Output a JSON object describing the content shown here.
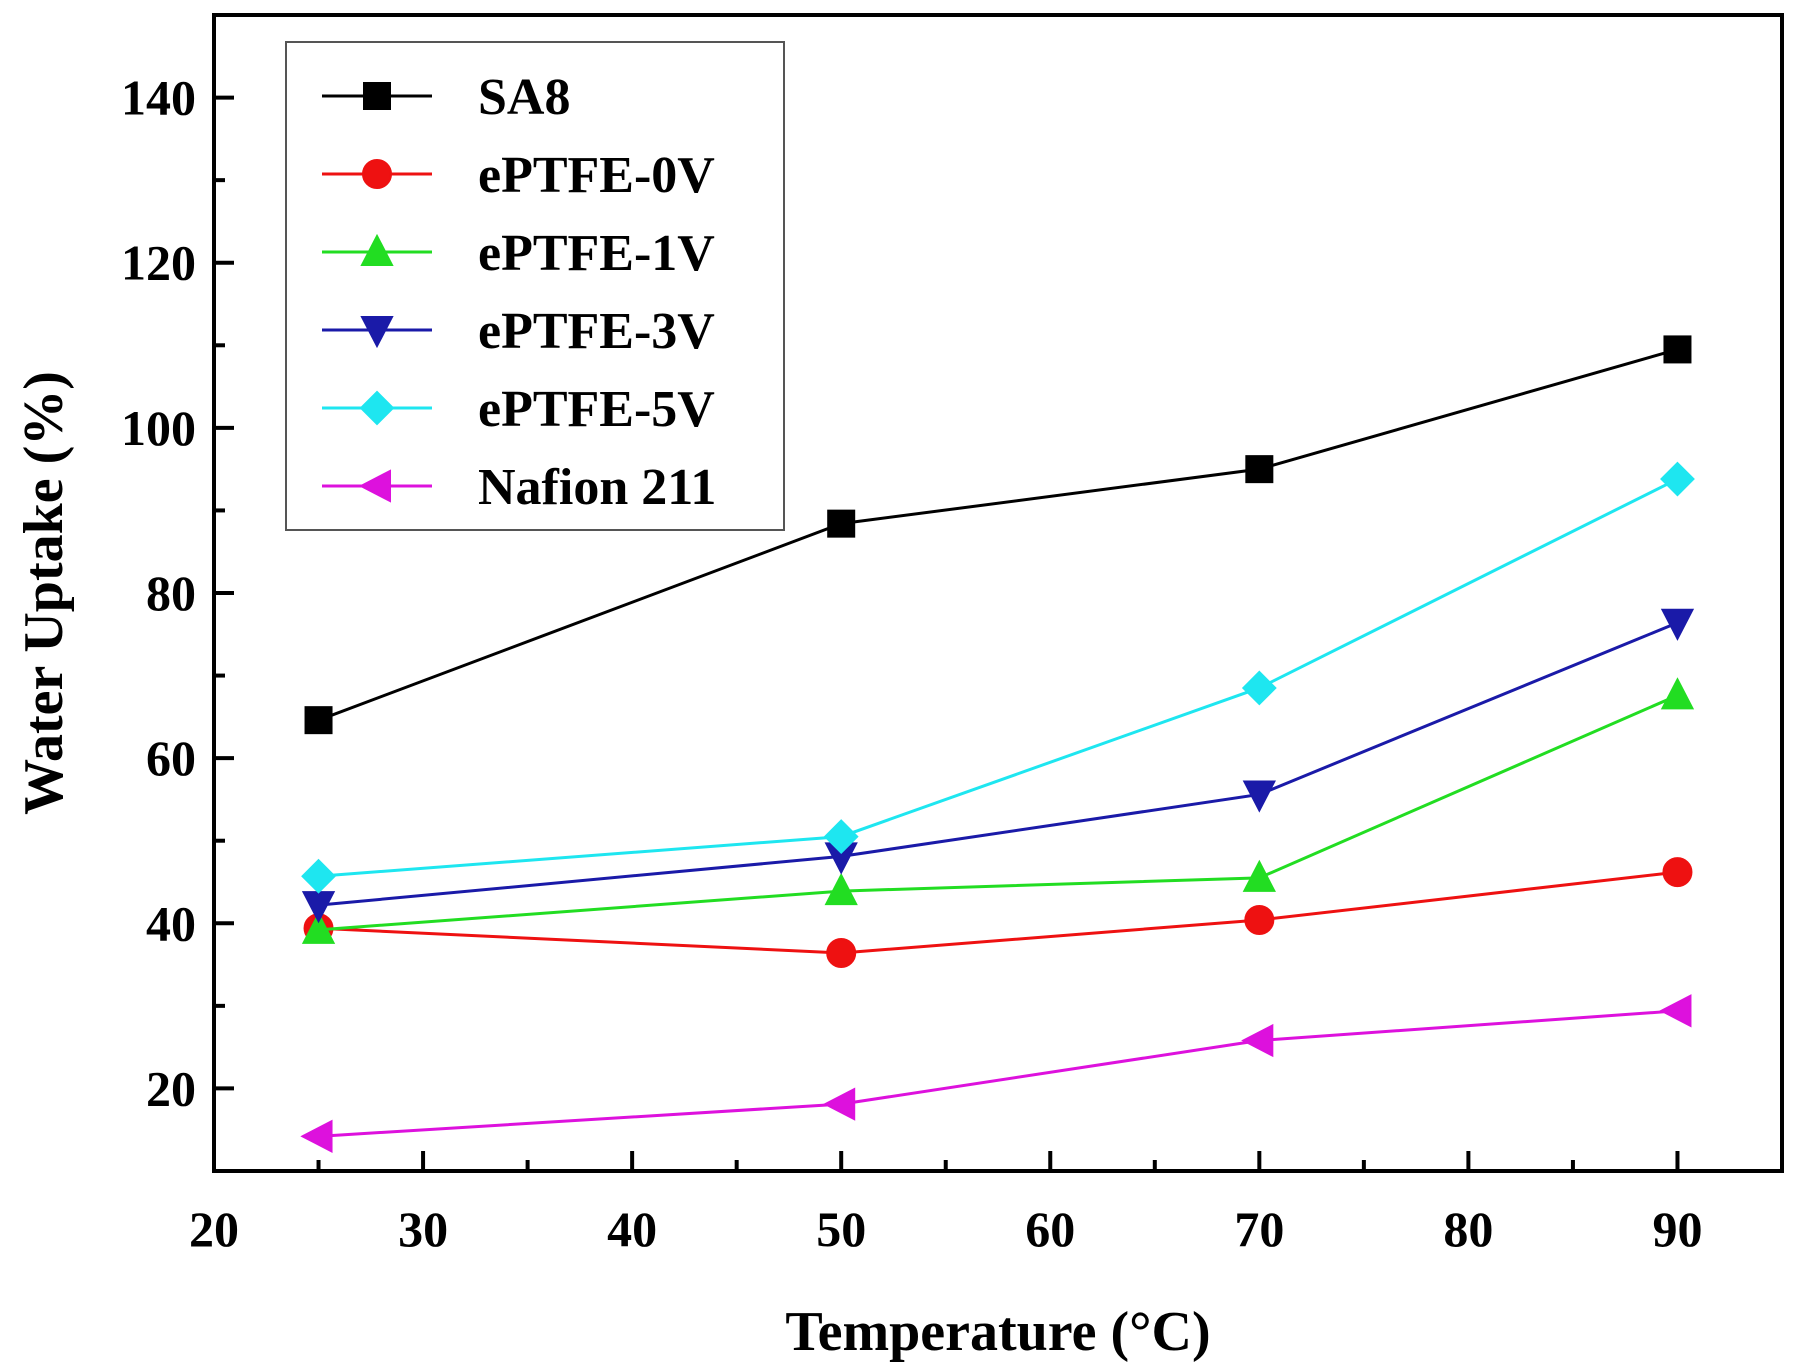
{
  "chart_data": {
    "type": "line",
    "title": "",
    "xlabel": "Temperature (°C)",
    "ylabel": "Water Uptake (%)",
    "xlim": [
      20,
      95
    ],
    "ylim": [
      10,
      150
    ],
    "x_ticks": [
      20,
      30,
      40,
      50,
      60,
      70,
      80,
      90
    ],
    "x_tick_labels": [
      "20",
      "30",
      "40",
      "50",
      "60",
      "70",
      "80",
      "90"
    ],
    "y_ticks": [
      20,
      40,
      60,
      80,
      100,
      120,
      140
    ],
    "y_tick_labels": [
      "20",
      "40",
      "60",
      "80",
      "100",
      "120",
      "140"
    ],
    "x_minor_step": 5,
    "y_minor_step": 10,
    "grid": false,
    "legend_position": "top-left",
    "x": [
      25,
      50,
      70,
      90
    ],
    "series": [
      {
        "name": "SA8",
        "color": "#000000",
        "marker": "square",
        "values": [
          64.6,
          88.4,
          95.0,
          109.5
        ]
      },
      {
        "name": "ePTFE-0V",
        "color": "#ee1111",
        "marker": "circle",
        "values": [
          39.4,
          36.4,
          40.4,
          46.2
        ]
      },
      {
        "name": "ePTFE-1V",
        "color": "#22dd22",
        "marker": "triangle-up",
        "values": [
          39.2,
          43.9,
          45.5,
          67.6
        ]
      },
      {
        "name": "ePTFE-3V",
        "color": "#1a1aa8",
        "marker": "triangle-down",
        "values": [
          42.2,
          48.1,
          55.6,
          76.4
        ]
      },
      {
        "name": "ePTFE-5V",
        "color": "#1ee6f0",
        "marker": "diamond",
        "values": [
          45.7,
          50.5,
          68.5,
          93.8
        ]
      },
      {
        "name": "Nafion 211",
        "color": "#dd11dd",
        "marker": "triangle-left",
        "values": [
          14.2,
          18.1,
          25.8,
          29.4
        ]
      }
    ]
  }
}
